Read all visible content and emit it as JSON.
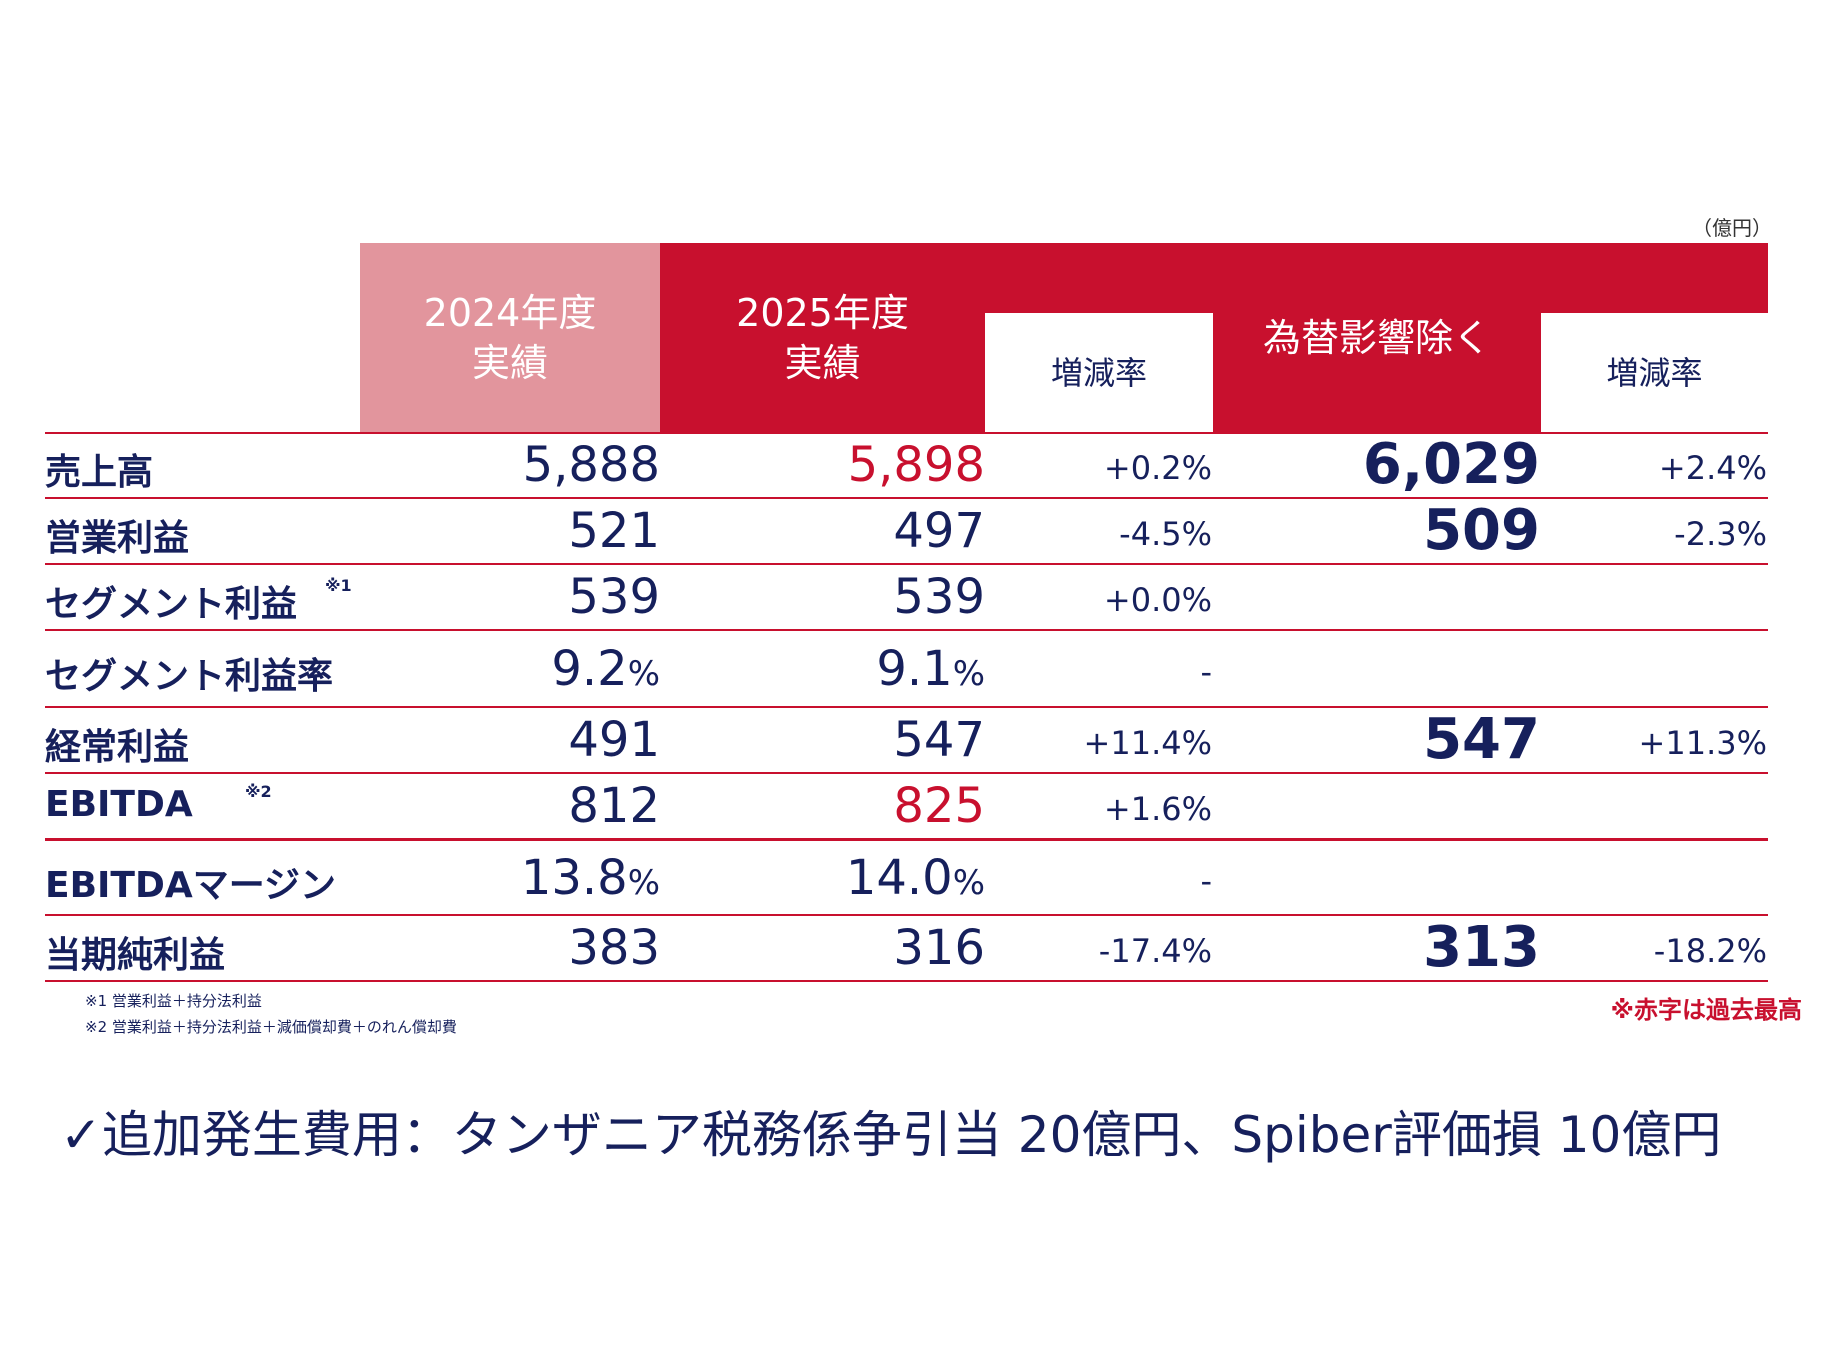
{
  "unit": "（億円）",
  "headers": {
    "fy2024": [
      "2024年度",
      "実績"
    ],
    "fy2025": [
      "2025年度",
      "実績"
    ],
    "change": "増減率",
    "fx": "為替影響除く",
    "fx_change": "増減率"
  },
  "rows": [
    {
      "label": "売上高",
      "fy2024": "5,888",
      "fy2025": "5,898",
      "change": "+0.2%",
      "fx": "6,029",
      "fx_change": "+2.4%"
    },
    {
      "label": "営業利益",
      "fy2024": "521",
      "fy2025": "497",
      "change": "-4.5%",
      "fx": "509",
      "fx_change": "-2.3%"
    },
    {
      "label": "セグメント利益",
      "note": "※1",
      "fy2024": "539",
      "fy2025": "539",
      "change": "+0.0%",
      "fx": "",
      "fx_change": ""
    },
    {
      "label": "セグメント利益率",
      "fy2024": "9.2",
      "fy2024_unit": "%",
      "fy2025": "9.1",
      "fy2025_unit": "%",
      "change": "-",
      "fx": "",
      "fx_change": ""
    },
    {
      "label": "経常利益",
      "fy2024": "491",
      "fy2025": "547",
      "change": "+11.4%",
      "fx": "547",
      "fx_change": "+11.3%"
    },
    {
      "label": "EBITDA",
      "note": "※2",
      "fy2024": "812",
      "fy2025": "825",
      "change": "+1.6%",
      "fx": "",
      "fx_change": ""
    },
    {
      "label": "EBITDAマージン",
      "fy2024": "13.8",
      "fy2024_unit": "%",
      "fy2025": "14.0",
      "fy2025_unit": "%",
      "change": "-",
      "fx": "",
      "fx_change": ""
    },
    {
      "label": "当期純利益",
      "fy2024": "383",
      "fy2025": "316",
      "change": "-17.4%",
      "fx": "313",
      "fx_change": "-18.2%"
    }
  ],
  "notes": [
    "※1  営業利益＋持分法利益",
    "※2  営業利益＋持分法利益＋減価償却費＋のれん償却費"
  ],
  "record_note": "※赤字は過去最高",
  "bottom_text": "✓追加発生費用：タンザニア税務係争引当 20億円、Spiber評価損 10億円",
  "colors": {
    "accent": "#c8102e",
    "accent_light": "#e2959d",
    "text": "#16205c"
  }
}
